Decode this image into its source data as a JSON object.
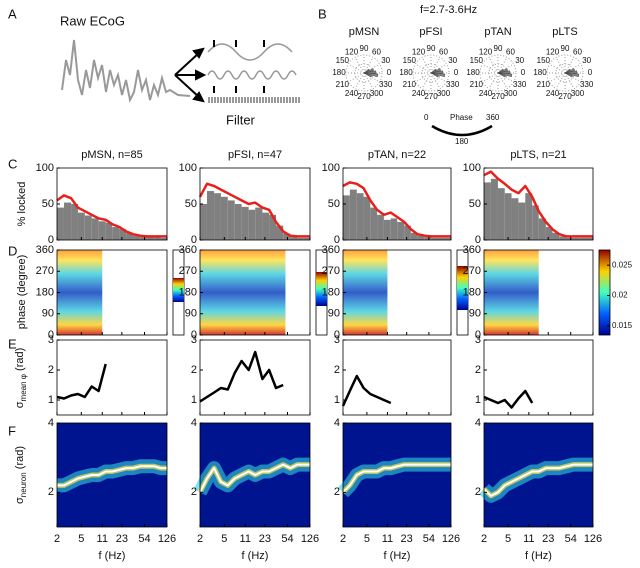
{
  "panel_labels": [
    "A",
    "B",
    "C",
    "D",
    "E",
    "F"
  ],
  "panel_a": {
    "title": "Raw ECoG",
    "filter_label": "Filter"
  },
  "panel_b": {
    "title": "f=2.7-3.6Hz",
    "cells": [
      "pMSN",
      "pFSI",
      "pTAN",
      "pLTS"
    ],
    "angle_labels": [
      "90",
      "60",
      "30",
      "0",
      "330",
      "300",
      "270",
      "240",
      "210",
      "180",
      "150",
      "120"
    ],
    "phase_legend": {
      "start": "0",
      "label": "Phase",
      "end": "360",
      "middle": "180"
    }
  },
  "chart_data": {
    "type": "line",
    "x": [
      2,
      2.6,
      3.4,
      4.4,
      5.7,
      7.4,
      9.6,
      12.5,
      16,
      21,
      27,
      35,
      46,
      60,
      78,
      100,
      126
    ],
    "xscale": "log",
    "xlim": [
      2,
      126
    ],
    "xticks": [
      2,
      5,
      11,
      23,
      54,
      126
    ],
    "xlabel": "f (Hz)",
    "rows": {
      "locked": {
        "ylabel": "% locked",
        "ylim": [
          0,
          100
        ],
        "yticks": [
          0,
          50,
          100
        ],
        "line_color": "#e8201c",
        "bar_color": "#808080"
      },
      "phase": {
        "ylabel": "phase (degree)",
        "ylim": [
          0,
          360
        ],
        "yticks": [
          0,
          90,
          180,
          270,
          360
        ],
        "clim": [
          0.0135,
          0.0275
        ],
        "colorbar_ticks": [
          0.025,
          0.02,
          0.015
        ]
      },
      "sigma_phase": {
        "ylabel_symbol": "σ",
        "ylabel_sub": "mean φ",
        "ylabel_unit": " (rad)",
        "ylim": [
          0.5,
          3
        ],
        "yticks": [
          1,
          2,
          3
        ],
        "color": "#000000"
      },
      "sigma_neuron": {
        "ylabel_symbol": "σ",
        "ylabel_sub": "neuron",
        "ylabel_unit": " (rad)",
        "ylim": [
          1,
          4
        ],
        "yticks": [
          2,
          4
        ],
        "color": "#ffffff"
      }
    },
    "columns": [
      {
        "title": "pMSN, n=85",
        "locked_bars": [
          45,
          52,
          50,
          38,
          34,
          30,
          26,
          24,
          18,
          15,
          10,
          6,
          5,
          4,
          4,
          3,
          3
        ],
        "locked_line": [
          55,
          62,
          58,
          45,
          40,
          35,
          30,
          28,
          22,
          18,
          12,
          8,
          6,
          5,
          5,
          5,
          5
        ],
        "sigma_phase": [
          1.1,
          1.05,
          1.15,
          1.2,
          1.1,
          1.45,
          1.3,
          2.2,
          null,
          null,
          null,
          null,
          null,
          null,
          null,
          null,
          null
        ],
        "sigma_neuron": [
          2.2,
          2.2,
          2.3,
          2.4,
          2.45,
          2.5,
          2.5,
          2.6,
          2.6,
          2.65,
          2.7,
          2.7,
          2.75,
          2.75,
          2.75,
          2.7,
          2.7
        ]
      },
      {
        "title": "pFSI, n=47",
        "locked_bars": [
          50,
          68,
          65,
          60,
          55,
          50,
          46,
          42,
          45,
          38,
          35,
          20,
          9,
          4,
          3,
          3,
          3
        ],
        "locked_line": [
          60,
          78,
          75,
          70,
          65,
          60,
          55,
          50,
          52,
          45,
          42,
          25,
          12,
          6,
          5,
          5,
          5
        ],
        "sigma_phase": [
          0.95,
          1.1,
          1.25,
          1.4,
          1.35,
          1.9,
          2.3,
          2.0,
          2.6,
          1.7,
          2.0,
          1.4,
          1.5,
          null,
          null,
          null,
          null
        ],
        "sigma_neuron": [
          2.0,
          2.4,
          2.7,
          2.3,
          2.2,
          2.4,
          2.5,
          2.6,
          2.5,
          2.6,
          2.6,
          2.7,
          2.8,
          2.7,
          2.8,
          2.8,
          2.8
        ]
      },
      {
        "title": "pTAN, n=22",
        "locked_bars": [
          62,
          70,
          65,
          60,
          45,
          35,
          28,
          30,
          25,
          20,
          10,
          6,
          4,
          3,
          3,
          3,
          3
        ],
        "locked_line": [
          75,
          80,
          78,
          72,
          55,
          42,
          35,
          38,
          32,
          25,
          15,
          8,
          6,
          5,
          5,
          5,
          5
        ],
        "sigma_phase": [
          0.8,
          1.3,
          1.8,
          1.4,
          1.2,
          1.1,
          1.0,
          0.9,
          null,
          null,
          null,
          null,
          null,
          null,
          null,
          null,
          null
        ],
        "sigma_neuron": [
          2.0,
          2.2,
          2.5,
          2.6,
          2.6,
          2.6,
          2.7,
          2.7,
          2.75,
          2.8,
          2.8,
          2.8,
          2.8,
          2.8,
          2.8,
          2.8,
          2.8
        ]
      },
      {
        "title": "pLTS, n=21",
        "locked_bars": [
          80,
          85,
          72,
          65,
          58,
          52,
          65,
          48,
          30,
          18,
          10,
          5,
          3,
          3,
          3,
          3,
          3
        ],
        "locked_line": [
          90,
          95,
          85,
          78,
          70,
          65,
          75,
          60,
          40,
          25,
          15,
          8,
          5,
          5,
          5,
          5,
          5
        ],
        "sigma_phase": [
          1.1,
          1.0,
          0.9,
          1.0,
          0.75,
          1.05,
          1.3,
          0.9,
          null,
          null,
          null,
          null,
          null,
          null,
          null,
          null,
          null
        ],
        "sigma_neuron": [
          2.1,
          1.9,
          2.0,
          2.2,
          2.3,
          2.4,
          2.5,
          2.6,
          2.6,
          2.7,
          2.7,
          2.7,
          2.75,
          2.8,
          2.8,
          2.8,
          2.8
        ]
      }
    ]
  }
}
